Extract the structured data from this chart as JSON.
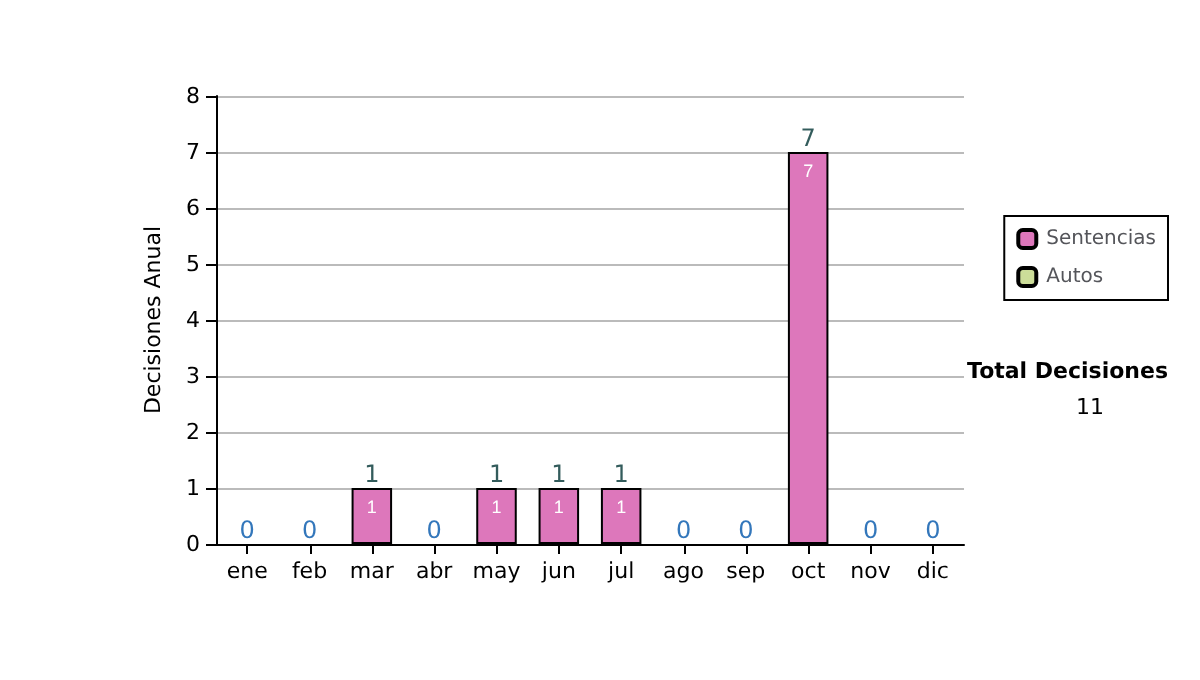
{
  "chart_data": {
    "type": "bar",
    "stacked": true,
    "ylabel": "Decisiones Anual",
    "categories": [
      "ene",
      "feb",
      "mar",
      "abr",
      "may",
      "jun",
      "jul",
      "ago",
      "sep",
      "oct",
      "nov",
      "dic"
    ],
    "series": [
      {
        "name": "Sentencias",
        "color": "#dd77bb",
        "values": [
          0,
          0,
          1,
          0,
          1,
          1,
          1,
          0,
          0,
          7,
          0,
          0
        ],
        "value_labels": [
          null,
          null,
          "1",
          null,
          "1",
          "1",
          "1",
          null,
          null,
          "7",
          null,
          null
        ]
      },
      {
        "name": "Autos",
        "color": "#ccdd99",
        "values": [
          0,
          0,
          0,
          0,
          0,
          0,
          0,
          0,
          0,
          0,
          0,
          0
        ]
      }
    ],
    "totals": [
      "0",
      "0",
      "1",
      "0",
      "1",
      "1",
      "1",
      "0",
      "0",
      "7",
      "0",
      "0"
    ],
    "ylim": [
      0,
      8
    ],
    "yticks": [
      0,
      1,
      2,
      3,
      4,
      5,
      6,
      7,
      8
    ],
    "grid": "y",
    "legend": "right",
    "annotations": [
      "Total Decisiones",
      "11"
    ]
  }
}
